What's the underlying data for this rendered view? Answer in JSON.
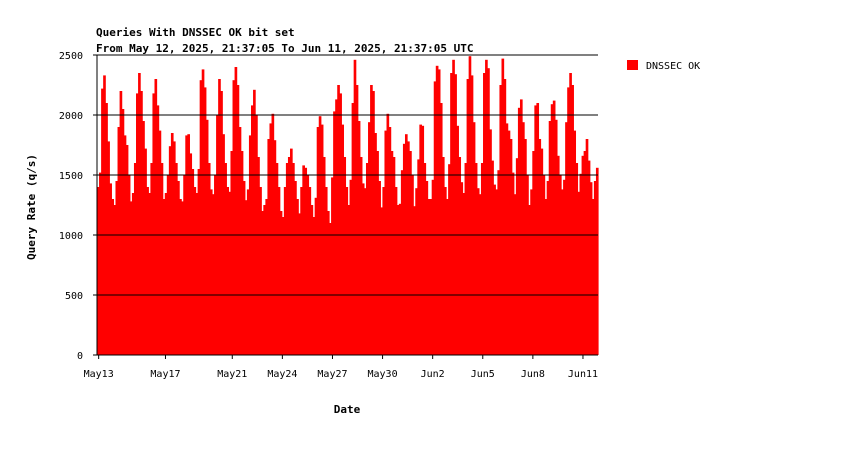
{
  "chart_data": {
    "type": "area",
    "title_lines": [
      "Queries With DNSSEC OK bit set",
      "From May 12, 2025, 21:37:05 To Jun 11, 2025, 21:37:05 UTC"
    ],
    "xlabel": "Date",
    "ylabel": "Query Rate (q/s)",
    "ylim": [
      0,
      2500
    ],
    "yticks": [
      0,
      500,
      1000,
      1500,
      2000,
      2500
    ],
    "grid": "horizontal",
    "x_start": "May 12, 2025, 21:37:05",
    "x_end": "Jun 11, 2025, 21:37:05",
    "x_tick_labels": [
      {
        "label": "May13",
        "day": 0.1
      },
      {
        "label": "May17",
        "day": 4.1
      },
      {
        "label": "May21",
        "day": 8.1
      },
      {
        "label": "May24",
        "day": 11.1
      },
      {
        "label": "May27",
        "day": 14.1
      },
      {
        "label": "May30",
        "day": 17.1
      },
      {
        "label": "Jun2",
        "day": 20.1
      },
      {
        "label": "Jun5",
        "day": 23.1
      },
      {
        "label": "Jun8",
        "day": 26.1
      },
      {
        "label": "Jun11",
        "day": 29.1
      }
    ],
    "legend_position": "top-right",
    "series": [
      {
        "name": "DNSSEC OK",
        "color": "#ff0000",
        "values": [
          1400,
          1520,
          2220,
          2330,
          2100,
          1780,
          1430,
          1300,
          1250,
          1450,
          1900,
          2200,
          2050,
          1830,
          1750,
          1500,
          1280,
          1350,
          1600,
          2180,
          2350,
          2200,
          1950,
          1720,
          1400,
          1350,
          1600,
          2180,
          2300,
          2080,
          1870,
          1600,
          1300,
          1350,
          1500,
          1740,
          1850,
          1780,
          1600,
          1450,
          1300,
          1280,
          1500,
          1830,
          1840,
          1680,
          1550,
          1400,
          1350,
          1550,
          2290,
          2380,
          2230,
          1960,
          1600,
          1380,
          1340,
          1500,
          2000,
          2300,
          2200,
          1840,
          1600,
          1400,
          1360,
          1700,
          2290,
          2400,
          2250,
          1900,
          1700,
          1450,
          1290,
          1380,
          1830,
          2080,
          2210,
          2000,
          1650,
          1400,
          1200,
          1250,
          1300,
          1800,
          1930,
          2010,
          1790,
          1600,
          1400,
          1200,
          1150,
          1400,
          1600,
          1650,
          1720,
          1600,
          1450,
          1300,
          1180,
          1400,
          1580,
          1560,
          1500,
          1400,
          1250,
          1150,
          1310,
          1900,
          1990,
          1920,
          1650,
          1400,
          1200,
          1100,
          1480,
          2030,
          2130,
          2250,
          2180,
          1920,
          1650,
          1400,
          1250,
          1460,
          2100,
          2460,
          2250,
          1950,
          1650,
          1430,
          1390,
          1600,
          1940,
          2250,
          2200,
          1850,
          1700,
          1450,
          1230,
          1400,
          1870,
          2010,
          1900,
          1700,
          1650,
          1400,
          1250,
          1260,
          1540,
          1760,
          1840,
          1780,
          1700,
          1500,
          1240,
          1390,
          1630,
          1920,
          1910,
          1600,
          1450,
          1300,
          1300,
          1460,
          2280,
          2410,
          2380,
          2100,
          1650,
          1400,
          1300,
          1590,
          2350,
          2460,
          2340,
          1910,
          1650,
          1440,
          1350,
          1600,
          2300,
          2490,
          2330,
          1940,
          1600,
          1390,
          1340,
          1600,
          2350,
          2460,
          2390,
          1880,
          1620,
          1420,
          1380,
          1540,
          2250,
          2470,
          2300,
          1930,
          1870,
          1800,
          1520,
          1340,
          1640,
          2060,
          2130,
          1940,
          1800,
          1500,
          1250,
          1380,
          1700,
          2080,
          2100,
          1800,
          1720,
          1500,
          1300,
          1450,
          1950,
          2090,
          2120,
          1960,
          1660,
          1500,
          1380,
          1460,
          1940,
          2230,
          2350,
          2250,
          1870,
          1600,
          1360,
          1510,
          1660,
          1700,
          1800,
          1620,
          1440,
          1300,
          1450,
          1560
        ]
      }
    ]
  }
}
